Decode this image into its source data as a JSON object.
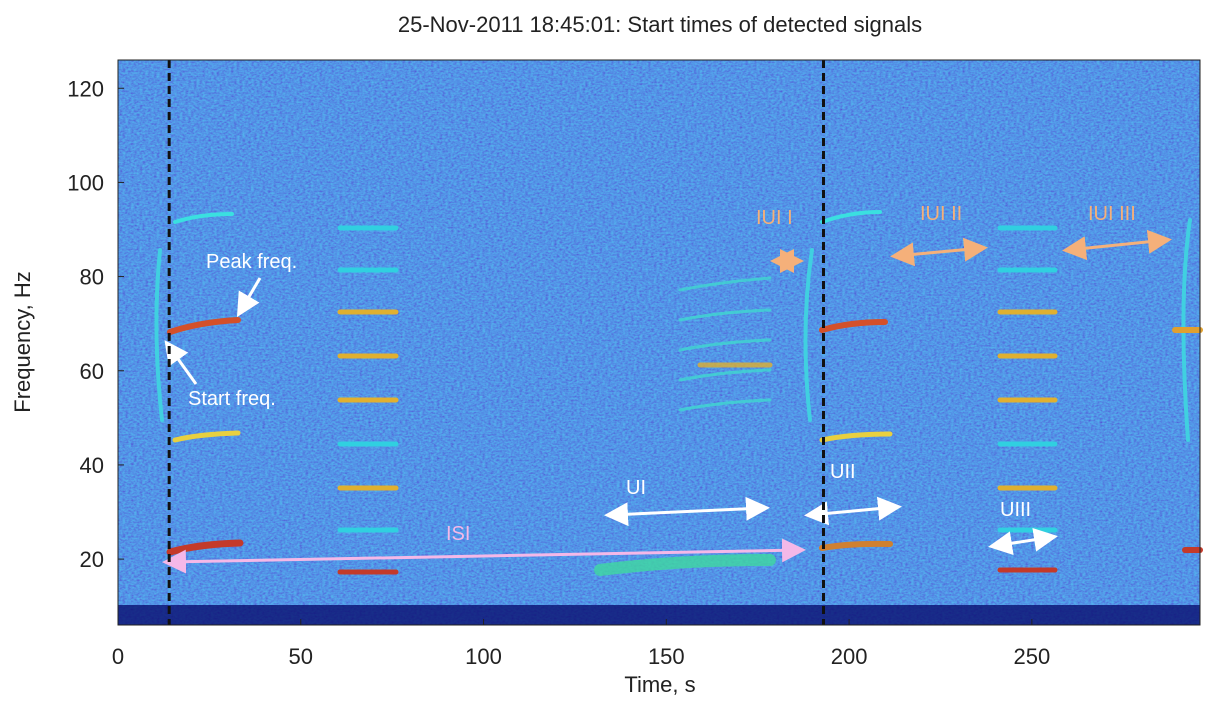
{
  "chart_data": {
    "type": "spectrogram",
    "title": "25-Nov-2011 18:45:01: Start times of detected signals",
    "x_label": "Time, s",
    "y_label": "Frequency, Hz",
    "xlim": [
      0,
      296
    ],
    "ylim": [
      6,
      126
    ],
    "xticks": [
      0,
      50,
      100,
      150,
      200,
      250
    ],
    "yticks": [
      20,
      40,
      60,
      80,
      100,
      120
    ],
    "detections": [
      14,
      193
    ],
    "annotations": [
      "Peak freq.",
      "Start freq.",
      "IUI I",
      "IUI II",
      "IUI III",
      "UI",
      "UII",
      "UIII",
      "ISI"
    ]
  }
}
